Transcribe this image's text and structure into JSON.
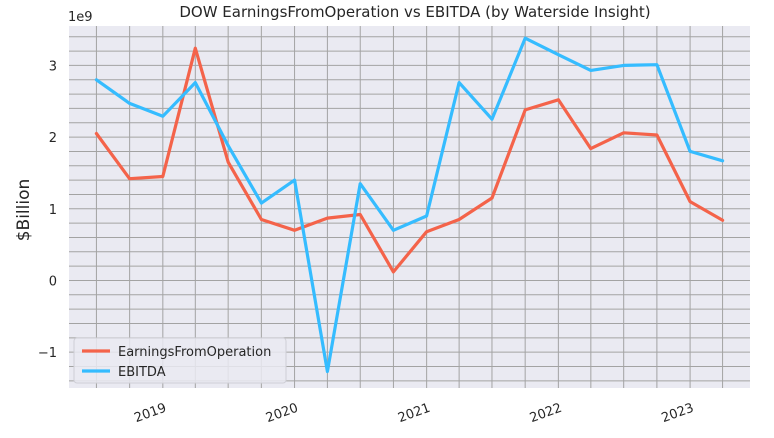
{
  "chart_data": {
    "type": "line",
    "title": "DOW EarningsFromOperation vs EBITDA (by Waterside Insight)",
    "ylabel": "$Billion",
    "xlabel": "",
    "y_offset_label": "1e9",
    "ylim": [
      -1.5,
      3.55
    ],
    "yticks": [
      -1,
      0,
      1,
      2,
      3
    ],
    "ytick_labels": [
      "−1",
      "0",
      "1",
      "2",
      "3"
    ],
    "x": [
      "2018-06-30",
      "2018-09-30",
      "2018-12-31",
      "2019-03-31",
      "2019-06-30",
      "2019-09-30",
      "2019-12-31",
      "2020-03-31",
      "2020-06-30",
      "2020-09-30",
      "2020-12-31",
      "2021-03-31",
      "2021-06-30",
      "2021-09-30",
      "2021-12-31",
      "2022-03-31",
      "2022-06-30",
      "2022-09-30",
      "2022-12-31",
      "2023-03-31"
    ],
    "xtick_labels": [
      "2019",
      "2020",
      "2021",
      "2022",
      "2023"
    ],
    "legend_position": "lower-left",
    "grid": true,
    "series": [
      {
        "name": "EarningsFromOperation",
        "color": "#f4634a",
        "values": [
          2.05,
          1.42,
          1.45,
          3.24,
          1.65,
          0.85,
          0.7,
          0.87,
          0.92,
          0.12,
          0.68,
          0.85,
          1.15,
          2.38,
          2.52,
          1.84,
          2.06,
          2.03,
          1.1,
          0.84
        ]
      },
      {
        "name": "EBITDA",
        "color": "#35bcff",
        "values": [
          2.8,
          2.47,
          2.29,
          2.76,
          1.88,
          1.08,
          1.4,
          -1.27,
          1.35,
          0.7,
          0.9,
          2.76,
          2.25,
          3.38,
          3.15,
          2.93,
          3.0,
          3.01,
          1.8,
          1.67
        ]
      }
    ]
  }
}
